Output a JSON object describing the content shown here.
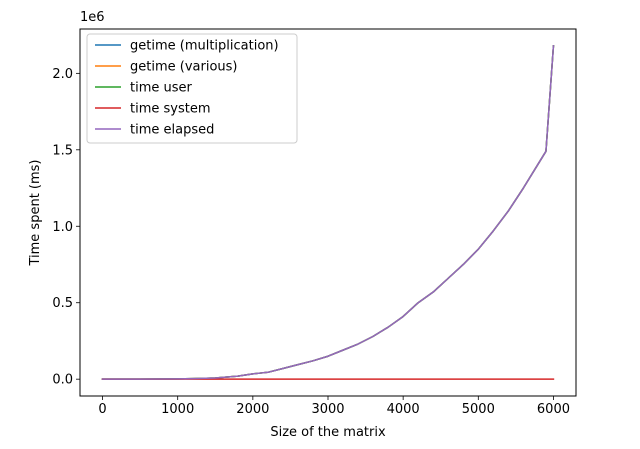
{
  "chart_data": {
    "type": "line",
    "title": "",
    "xlabel": "Size of the matrix",
    "ylabel": "Time spent (ms)",
    "y_offset_label": "1e6",
    "xlim": [
      -300,
      6300
    ],
    "ylim": [
      -0.11,
      2.29
    ],
    "y_unit_scale": 1000000,
    "grid": false,
    "legend_position": "top-left",
    "x_ticks": [
      0,
      1000,
      2000,
      3000,
      4000,
      5000,
      6000
    ],
    "x_tick_labels": [
      "0",
      "1000",
      "2000",
      "3000",
      "4000",
      "5000",
      "6000"
    ],
    "y_ticks": [
      0,
      0.5,
      1.0,
      1.5,
      2.0
    ],
    "y_tick_labels": [
      "0.0",
      "0.5",
      "1.0",
      "1.5",
      "2.0"
    ],
    "x": [
      0,
      500,
      1000,
      1200,
      1500,
      1800,
      2000,
      2100,
      2200,
      2400,
      2600,
      2800,
      3000,
      3200,
      3400,
      3600,
      3800,
      4000,
      4200,
      4400,
      4600,
      4800,
      5000,
      5200,
      5400,
      5600,
      5800,
      5900,
      6000
    ],
    "series": [
      {
        "name": "getime (multiplication)",
        "color": "#1f77b4",
        "values": [
          0,
          0.0002,
          0.002,
          0.004,
          0.008,
          0.02,
          0.035,
          0.04,
          0.045,
          0.07,
          0.095,
          0.12,
          0.15,
          0.19,
          0.23,
          0.28,
          0.34,
          0.41,
          0.5,
          0.57,
          0.66,
          0.75,
          0.85,
          0.97,
          1.1,
          1.25,
          1.41,
          1.49,
          2.18
        ]
      },
      {
        "name": "getime (various)",
        "color": "#ff7f0e",
        "values": [
          0,
          0.0002,
          0.002,
          0.004,
          0.008,
          0.02,
          0.035,
          0.04,
          0.045,
          0.07,
          0.095,
          0.12,
          0.15,
          0.19,
          0.23,
          0.28,
          0.34,
          0.41,
          0.5,
          0.57,
          0.66,
          0.75,
          0.85,
          0.97,
          1.1,
          1.25,
          1.41,
          1.49,
          2.18
        ]
      },
      {
        "name": "time user",
        "color": "#2ca02c",
        "values": [
          0,
          0.0002,
          0.002,
          0.004,
          0.008,
          0.02,
          0.035,
          0.04,
          0.045,
          0.07,
          0.095,
          0.12,
          0.15,
          0.19,
          0.23,
          0.28,
          0.34,
          0.41,
          0.5,
          0.57,
          0.66,
          0.75,
          0.85,
          0.97,
          1.1,
          1.25,
          1.41,
          1.49,
          2.18
        ]
      },
      {
        "name": "time system",
        "color": "#d62728",
        "values": [
          0,
          0,
          0,
          0,
          0,
          0,
          0,
          0,
          0,
          0,
          0,
          0,
          0,
          0,
          0,
          0,
          0,
          0,
          0,
          0,
          0,
          0,
          0,
          0,
          0,
          0,
          0,
          0,
          0
        ]
      },
      {
        "name": "time elapsed",
        "color": "#9467bd",
        "values": [
          0,
          0.0002,
          0.002,
          0.004,
          0.008,
          0.02,
          0.035,
          0.04,
          0.045,
          0.07,
          0.095,
          0.12,
          0.15,
          0.19,
          0.23,
          0.28,
          0.34,
          0.41,
          0.5,
          0.57,
          0.66,
          0.75,
          0.85,
          0.97,
          1.1,
          1.25,
          1.41,
          1.49,
          2.18
        ]
      }
    ]
  }
}
